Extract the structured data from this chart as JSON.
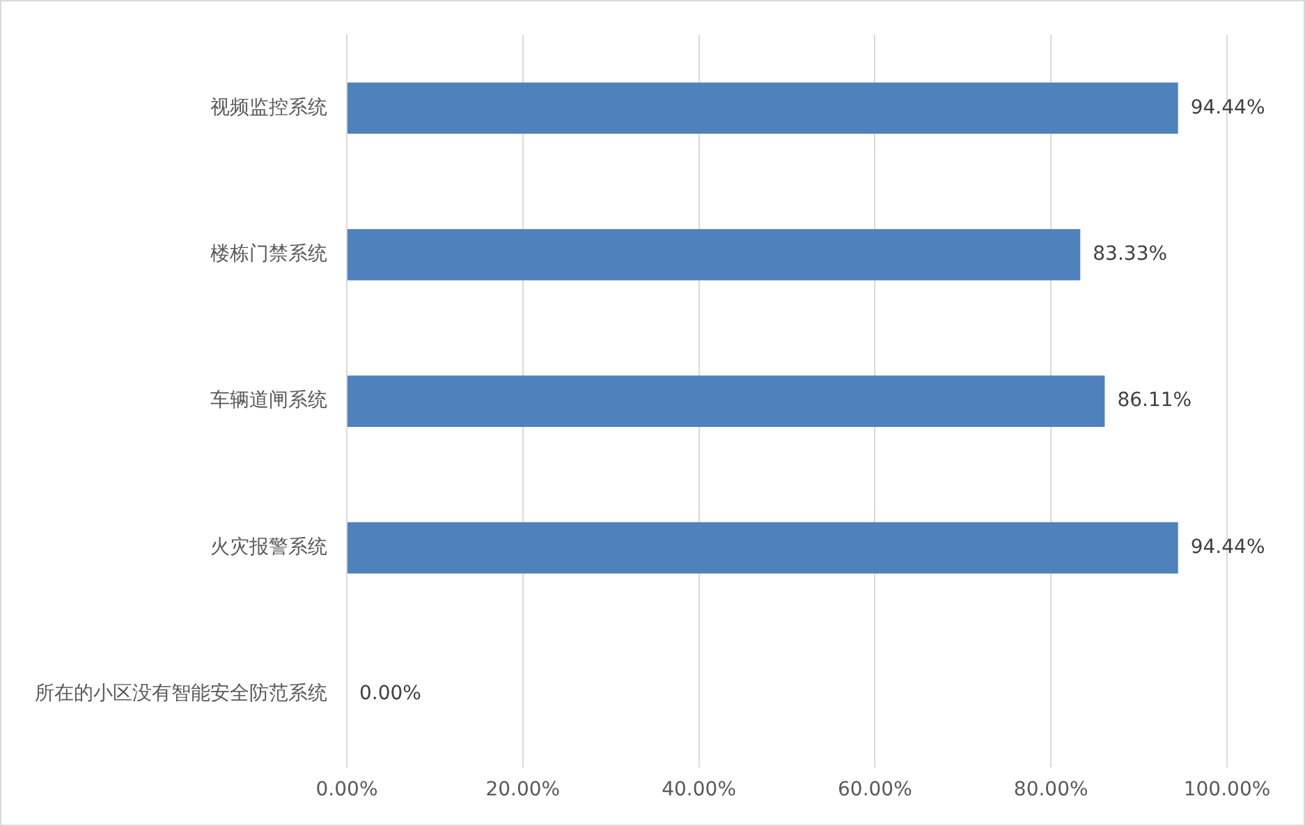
{
  "chart_data": {
    "type": "bar",
    "orientation": "horizontal",
    "categories": [
      "视频监控系统",
      "楼栋门禁系统",
      "车辆道闸系统",
      "火灾报警系统",
      "所在的小区没有智能安全防范系统"
    ],
    "values": [
      94.44,
      83.33,
      86.11,
      94.44,
      0
    ],
    "value_labels": [
      "94.44%",
      "83.33%",
      "86.11%",
      "94.44%",
      "0.00%"
    ],
    "color": "#4f81bd",
    "xlim": [
      0,
      100
    ],
    "xticks": [
      {
        "value": 0,
        "label": "0.00%"
      },
      {
        "value": 20,
        "label": "20.00%"
      },
      {
        "value": 40,
        "label": "40.00%"
      },
      {
        "value": 60,
        "label": "60.00%"
      },
      {
        "value": 80,
        "label": "80.00%"
      },
      {
        "value": 100,
        "label": "100.00%"
      }
    ],
    "grid": "x",
    "legend": false
  }
}
